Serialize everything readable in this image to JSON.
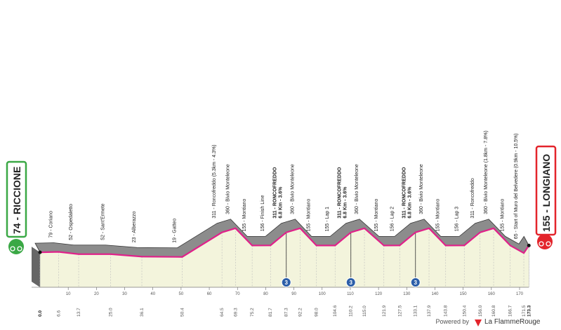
{
  "chart_data": {
    "type": "area",
    "start_label": "74 - RICCIONE",
    "finish_label": "155 - LONGIANO",
    "x": [
      0,
      6.6,
      13.7,
      25.0,
      36.1,
      50.4,
      64.5,
      69.3,
      75.2,
      81.7,
      87.3,
      92.2,
      98.0,
      104.6,
      110.2,
      115.0,
      121.9,
      127.5,
      133.1,
      137.9,
      143.8,
      150.4,
      156.0,
      160.8,
      166.7,
      171.5,
      173.3
    ],
    "x_labels": [
      "0.0",
      "6.6",
      "13.7",
      "25.0",
      "36.1",
      "50.4",
      "64.5",
      "69.3",
      "75.2",
      "81.7",
      "87.3",
      "92.2",
      "98.0",
      "104.6",
      "110.2",
      "115.0",
      "121.9",
      "127.5",
      "133.1",
      "137.9",
      "143.8",
      "150.4",
      "156.0",
      "160.8",
      "166.7",
      "171.5",
      "173.3"
    ],
    "values": [
      74,
      79,
      52,
      52,
      23,
      19,
      311,
      360,
      155,
      156,
      311,
      360,
      155,
      155,
      311,
      360,
      155,
      156,
      311,
      360,
      155,
      156,
      311,
      360,
      155,
      65,
      155
    ],
    "point_labels": [
      null,
      "79 - Coriano",
      "52 - Ospedaletto",
      "52 - Sant'Ermete",
      "23 - Alberazzo",
      "19 - Gatteo",
      "311 - Roncofreddo (5.3km - 4.3%)",
      "360 - Bivio Monteleone",
      "155 - Montiano",
      "156 - Finish Line",
      "311 - RONCOFREDDO",
      "360 - Bivio Monteleone",
      "155 - Montiano",
      "155 - Lap 1",
      "311 - RONCOFREDDO",
      "360 - Bivio Monteleone",
      "155 - Montiano",
      "156 - Lap 2",
      "311 - RONCOFREDDO",
      "360 - Bivio Monteleone",
      "155 - Montiano",
      "156 - Lap 3",
      "311 - Roncofreddo",
      "360 - Bivio Monteleone (1.8km - 7.8%)",
      "155 - Montiano",
      "65 - Start of Muro del Belvedere (0.9km - 10.5%)",
      null
    ],
    "point_sublabels": [
      null,
      null,
      null,
      null,
      null,
      null,
      null,
      null,
      null,
      null,
      "6.8 Km - 3.6%",
      null,
      null,
      null,
      "6.8 Km - 3.6%",
      null,
      null,
      null,
      "6.8 Km - 3.6%",
      null,
      null,
      null,
      null,
      null,
      null,
      null,
      null
    ],
    "kom_markers": [
      {
        "km": 87.3,
        "category": "3"
      },
      {
        "km": 110.2,
        "category": "3"
      },
      {
        "km": 133.1,
        "category": "3"
      }
    ],
    "xlim": [
      0,
      170
    ],
    "xticks": [
      10,
      20,
      30,
      40,
      50,
      60,
      70,
      80,
      90,
      100,
      110,
      120,
      130,
      140,
      150,
      160,
      170
    ],
    "line_color": "#e0218a",
    "area_color": "#f3f4dc",
    "relief_color": "#8c8c8c"
  },
  "footer": {
    "powered": "Powered by",
    "brand": "La FlammeRouge"
  }
}
